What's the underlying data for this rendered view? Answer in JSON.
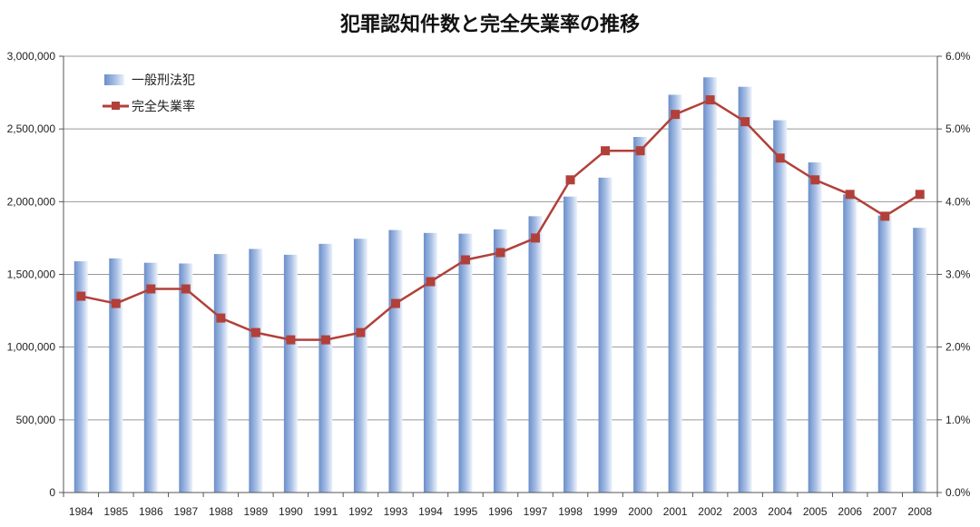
{
  "chart_data": {
    "type": "bar",
    "title": "犯罪認知件数と完全失業率の推移",
    "categories": [
      "1984",
      "1985",
      "1986",
      "1987",
      "1988",
      "1989",
      "1990",
      "1991",
      "1992",
      "1993",
      "1994",
      "1995",
      "1996",
      "1997",
      "1998",
      "1999",
      "2000",
      "2001",
      "2002",
      "2003",
      "2004",
      "2005",
      "2006",
      "2007",
      "2008"
    ],
    "series": [
      {
        "name": "一般刑法犯",
        "type": "bar",
        "axis": "left",
        "values": [
          1590000,
          1610000,
          1580000,
          1575000,
          1640000,
          1675000,
          1635000,
          1710000,
          1745000,
          1805000,
          1785000,
          1780000,
          1810000,
          1900000,
          2035000,
          2165000,
          2445000,
          2735000,
          2855000,
          2790000,
          2560000,
          2270000,
          2050000,
          1905000,
          1820000
        ]
      },
      {
        "name": "完全失業率",
        "type": "line",
        "axis": "right",
        "values": [
          2.7,
          2.6,
          2.8,
          2.8,
          2.4,
          2.2,
          2.1,
          2.1,
          2.2,
          2.6,
          2.9,
          3.2,
          3.3,
          3.5,
          4.3,
          4.7,
          4.7,
          5.2,
          5.4,
          5.1,
          4.6,
          4.3,
          4.1,
          3.8,
          4.1
        ]
      }
    ],
    "ylim_left": [
      0,
      3000000
    ],
    "ylim_right": [
      0,
      6.0
    ],
    "left_ticks": [
      "0",
      "500,000",
      "1,000,000",
      "1,500,000",
      "2,000,000",
      "2,500,000",
      "3,000,000"
    ],
    "right_ticks": [
      "0.0%",
      "1.0%",
      "2.0%",
      "3.0%",
      "4.0%",
      "5.0%",
      "6.0%"
    ],
    "grid": true,
    "legend_position": "top-left",
    "colors": {
      "bar_dark": "#6b8fc9",
      "bar_light": "#e8eef9",
      "line": "#b2403a",
      "grid": "#999999"
    }
  }
}
